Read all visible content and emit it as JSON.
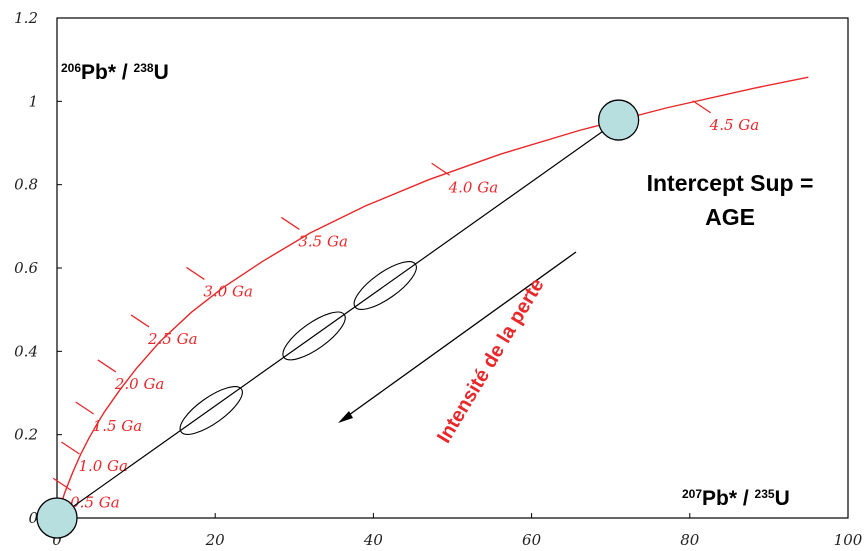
{
  "chart_data": {
    "type": "line",
    "xlim": [
      0,
      100
    ],
    "ylim": [
      0,
      1.2
    ],
    "x_ticks": [
      "0",
      "20",
      "40",
      "60",
      "80",
      "100"
    ],
    "y_ticks": [
      "0",
      "0.2",
      "0.4",
      "0.6",
      "0.8",
      "1",
      "1.2"
    ],
    "xlabel": {
      "iso": "207",
      "text": "Pb* / ",
      "iso2": "235",
      "text2": "U"
    },
    "ylabel": {
      "iso": "206",
      "text": "Pb* / ",
      "iso2": "238",
      "text2": "U"
    },
    "concordia": {
      "color": "#e8282b",
      "x": [
        0,
        0.5,
        1,
        2,
        3,
        4,
        5,
        6,
        8,
        10,
        13,
        17,
        21,
        26,
        32,
        39,
        47,
        56,
        66,
        77,
        88,
        95
      ],
      "y": [
        0,
        0.033,
        0.062,
        0.11,
        0.153,
        0.19,
        0.224,
        0.255,
        0.309,
        0.358,
        0.423,
        0.494,
        0.553,
        0.616,
        0.684,
        0.749,
        0.812,
        0.873,
        0.93,
        0.984,
        1.031,
        1.058
      ]
    },
    "age_marks": [
      {
        "label": "0.5 Ga",
        "x": 0.65,
        "y": 0.081
      },
      {
        "label": "1.0 Ga",
        "x": 1.7,
        "y": 0.168
      },
      {
        "label": "1.5 Ga",
        "x": 3.5,
        "y": 0.264
      },
      {
        "label": "2.0 Ga",
        "x": 6.3,
        "y": 0.365
      },
      {
        "label": "2.5 Ga",
        "x": 10.5,
        "y": 0.473
      },
      {
        "label": "3.0 Ga",
        "x": 17.5,
        "y": 0.587
      },
      {
        "label": "3.5 Ga",
        "x": 29.5,
        "y": 0.707
      },
      {
        "label": "4.0 Ga",
        "x": 48.5,
        "y": 0.837
      },
      {
        "label": "4.5 Ga",
        "x": 81.5,
        "y": 0.987
      }
    ],
    "discordia": {
      "x": [
        0,
        71
      ],
      "y": [
        0,
        0.955
      ]
    },
    "intercepts": [
      {
        "x": 0,
        "y": 0,
        "color": "#b8dfe0"
      },
      {
        "x": 71,
        "y": 0.955,
        "color": "#b8dfe0"
      }
    ],
    "ellipses": [
      {
        "x": 19.5,
        "y": 0.258
      },
      {
        "x": 32.5,
        "y": 0.437
      },
      {
        "x": 41.5,
        "y": 0.558
      }
    ],
    "annotations": {
      "intercept_line1": "Intercept Sup =",
      "intercept_line2": "AGE",
      "arrow_text": "Intensité de la perte",
      "arrow_color": "#e8282b"
    }
  }
}
